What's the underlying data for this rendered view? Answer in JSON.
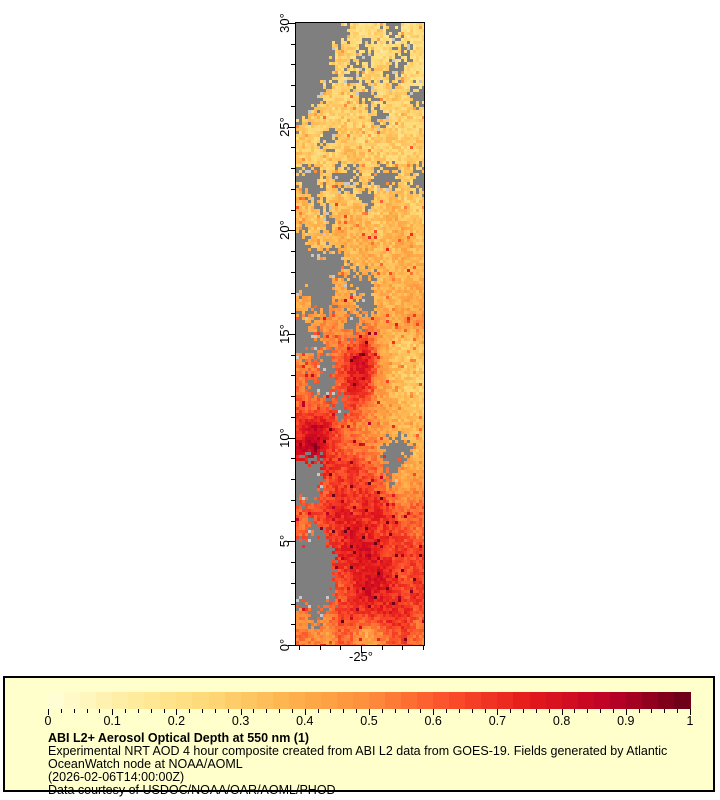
{
  "page": {
    "background": "#ffffff"
  },
  "map": {
    "lat_axis": {
      "range": [
        0,
        30
      ],
      "minor_step": 1,
      "majors": [
        {
          "value": 30,
          "label": "30°"
        },
        {
          "value": 25,
          "label": "25°"
        },
        {
          "value": 20,
          "label": "20°"
        },
        {
          "value": 15,
          "label": "15°"
        },
        {
          "value": 10,
          "label": "10°"
        },
        {
          "value": 5,
          "label": "5°"
        },
        {
          "value": 0,
          "label": "0°"
        }
      ]
    },
    "lon_axis": {
      "range": [
        -28.14,
        -21.96
      ],
      "minor_step": 1,
      "majors": [
        {
          "value": -25,
          "label": "-25°"
        }
      ]
    },
    "no_data_color": "#7f7f7f",
    "no_data_light_color": "#c8c8c8"
  },
  "chart_data": {
    "type": "heatmap",
    "title": "ABI L2+ Aerosol Optical Depth at 550 nm (1)",
    "lat_range": [
      0,
      30
    ],
    "lon_range": [
      -28.14,
      -21.96
    ],
    "value_range": [
      0,
      1
    ],
    "no_data_value": -1,
    "grid_note": "Approximate AOD values on a 10 (west-east) x 30 (north-south, 30N to 0N) grid read from the image; -1 = no data (cloud, gray)",
    "grid": [
      [
        -1,
        -1,
        -1,
        -1,
        0.25,
        0.2,
        0.25,
        -1,
        0.2,
        0.25
      ],
      [
        -1,
        -1,
        -1,
        0.3,
        0.25,
        -1,
        0.2,
        0.25,
        -1,
        0.25
      ],
      [
        -1,
        -1,
        -1,
        0.25,
        -1,
        0.25,
        0.3,
        -1,
        0.25,
        0.2
      ],
      [
        -1,
        -1,
        0.3,
        0.25,
        0.3,
        -1,
        0.25,
        0.3,
        0.25,
        -1
      ],
      [
        -1,
        0.3,
        0.25,
        0.3,
        0.25,
        0.3,
        -1,
        0.25,
        0.3,
        0.25
      ],
      [
        0.3,
        0.25,
        -1,
        0.3,
        0.3,
        0.25,
        0.3,
        0.3,
        0.25,
        0.3
      ],
      [
        0.3,
        0.3,
        0.25,
        0.3,
        0.35,
        0.3,
        0.3,
        0.25,
        0.3,
        0.3
      ],
      [
        -1,
        -1,
        0.3,
        -1,
        -1,
        0.3,
        -1,
        -1,
        0.3,
        -1
      ],
      [
        0.35,
        -1,
        0.3,
        0.35,
        0.3,
        -1,
        0.3,
        0.35,
        0.3,
        0.3
      ],
      [
        0.35,
        0.3,
        -1,
        0.35,
        0.4,
        0.35,
        0.3,
        0.4,
        0.35,
        0.3
      ],
      [
        -1,
        0.35,
        0.35,
        0.4,
        0.35,
        0.4,
        0.35,
        0.35,
        0.4,
        0.35
      ],
      [
        -1,
        -1,
        -1,
        -1,
        0.35,
        0.4,
        0.35,
        0.35,
        0.4,
        0.35
      ],
      [
        -1,
        -1,
        -1,
        0.4,
        -1,
        -1,
        0.35,
        0.4,
        0.35,
        0.4
      ],
      [
        0.4,
        -1,
        -1,
        0.45,
        0.4,
        -1,
        0.4,
        0.35,
        0.4,
        0.4
      ],
      [
        -1,
        0.45,
        0.5,
        0.45,
        -1,
        0.5,
        0.45,
        0.4,
        0.45,
        0.5
      ],
      [
        -1,
        -1,
        0.5,
        0.55,
        0.6,
        0.7,
        0.45,
        0.35,
        0.3,
        0.3
      ],
      [
        0.5,
        0.55,
        -1,
        0.6,
        0.75,
        0.8,
        0.5,
        0.35,
        0.3,
        0.3
      ],
      [
        0.55,
        -1,
        -1,
        0.6,
        0.8,
        0.7,
        0.45,
        0.35,
        0.3,
        0.3
      ],
      [
        0.6,
        0.55,
        0.6,
        -1,
        0.65,
        0.55,
        0.45,
        0.4,
        0.35,
        0.3
      ],
      [
        0.7,
        0.85,
        0.75,
        0.6,
        0.55,
        0.5,
        0.45,
        0.4,
        0.35,
        0.35
      ],
      [
        0.8,
        0.9,
        0.7,
        0.6,
        0.55,
        0.5,
        0.45,
        -1,
        -1,
        0.35
      ],
      [
        -1,
        -1,
        0.7,
        0.65,
        0.7,
        0.6,
        0.55,
        -1,
        0.4,
        0.4
      ],
      [
        -1,
        -1,
        0.6,
        0.7,
        0.65,
        0.7,
        0.6,
        0.5,
        0.45,
        0.5
      ],
      [
        0.6,
        0.65,
        0.7,
        0.75,
        0.65,
        0.7,
        0.75,
        0.6,
        0.55,
        0.6
      ],
      [
        0.55,
        -1,
        0.65,
        0.7,
        0.8,
        0.7,
        0.65,
        0.7,
        0.6,
        0.55
      ],
      [
        -1,
        -1,
        -1,
        0.7,
        0.75,
        0.8,
        0.7,
        0.65,
        0.7,
        0.65
      ],
      [
        -1,
        -1,
        -1,
        0.65,
        0.7,
        0.75,
        0.8,
        0.7,
        0.6,
        0.65
      ],
      [
        -1,
        -1,
        -1,
        0.6,
        0.7,
        0.8,
        0.75,
        0.7,
        0.65,
        0.7
      ],
      [
        0.5,
        -1,
        0.55,
        0.65,
        0.7,
        0.65,
        0.7,
        0.75,
        0.7,
        0.6
      ],
      [
        0.55,
        0.5,
        0.45,
        0.6,
        0.55,
        0.4,
        0.5,
        0.6,
        0.65,
        0.55
      ]
    ],
    "colormap_stops": [
      [
        0.0,
        "#ffffd9"
      ],
      [
        0.125,
        "#ffeda0"
      ],
      [
        0.25,
        "#fed976"
      ],
      [
        0.375,
        "#feb24c"
      ],
      [
        0.5,
        "#fd8d3c"
      ],
      [
        0.625,
        "#fc4e2a"
      ],
      [
        0.75,
        "#e31a1c"
      ],
      [
        0.875,
        "#bd0026"
      ],
      [
        1.0,
        "#660018"
      ]
    ]
  },
  "legend": {
    "background": "#ffffcc",
    "border_color": "#000000",
    "colorbar": {
      "min": 0,
      "max": 1,
      "blocks": 40,
      "major_tick_step": 0.1,
      "minor_tick_step": 0.02,
      "tick_labels": [
        "0",
        "0.1",
        "0.2",
        "0.3",
        "0.4",
        "0.5",
        "0.6",
        "0.7",
        "0.8",
        "0.9",
        "1"
      ]
    },
    "lines": [
      "ABI L2+ Aerosol Optical Depth at 550 nm (1)",
      "Experimental NRT AOD 4 hour composite created from ABI L2 data from GOES-19. Fields generated by Atlantic",
      "OceanWatch node at NOAA/AOML",
      "(2026-02-06T14:00:00Z)",
      "Data courtesy of USDOC/NOAA/OAR/AOML/PHOD"
    ]
  }
}
